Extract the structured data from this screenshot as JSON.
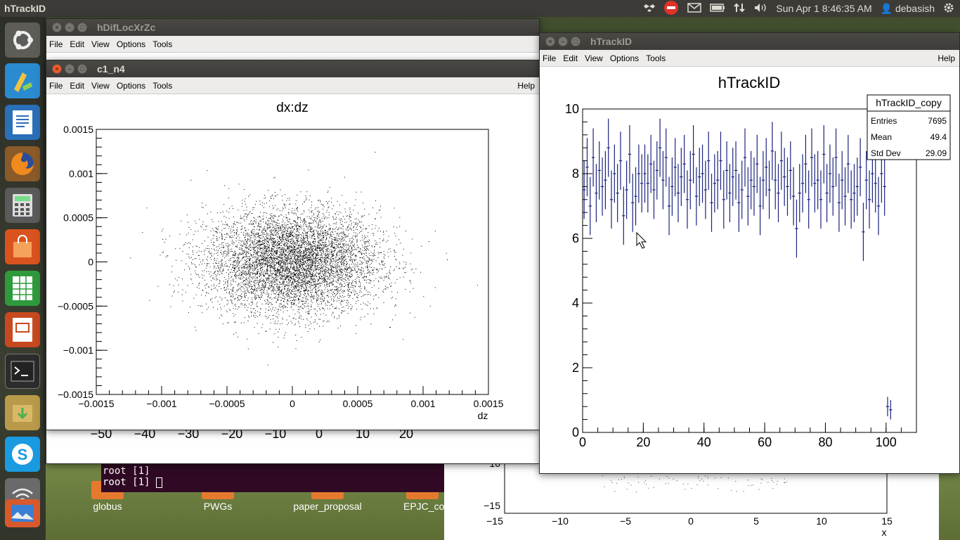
{
  "top_panel": {
    "app_title": "hTrackID",
    "clock": "Sun Apr  1  8:46:35 AM",
    "user": "debasish"
  },
  "windows": {
    "hdif": {
      "title": "hDifLocXrZc",
      "menu": [
        "File",
        "Edit",
        "View",
        "Options",
        "Tools"
      ],
      "x_ticks": [
        "−50",
        "−40",
        "−30",
        "−20",
        "−10",
        "0",
        "10",
        "20"
      ]
    },
    "back_plot": {
      "y_ticks": [
        "−10",
        "−15"
      ],
      "x_ticks": [
        "−15",
        "−10",
        "−5",
        "0",
        "5",
        "10",
        "15"
      ],
      "x_label": "x"
    },
    "c1_n4": {
      "title": "c1_n4",
      "menu": [
        "File",
        "Edit",
        "View",
        "Options",
        "Tools"
      ],
      "help": "Help"
    },
    "htrack": {
      "title": "hTrackID",
      "menu": [
        "File",
        "Edit",
        "View",
        "Options",
        "Tools"
      ],
      "help": "Help"
    }
  },
  "terminal": {
    "lines": [
      "root [1]",
      "root [1]"
    ]
  },
  "desktop_icons": [
    "globus",
    "PWGs",
    "paper_proposal",
    "EPJC_co"
  ],
  "stats_box": {
    "name": "hTrackID_copy",
    "entries_label": "Entries",
    "entries": "7695",
    "mean_label": "Mean",
    "mean": "49.4",
    "std_label": "Std Dev",
    "std": "29.09"
  },
  "chart_data": [
    {
      "type": "scatter",
      "title": "dx:dz",
      "xlabel": "dz",
      "ylabel": "",
      "xlim": [
        -0.0015,
        0.0015
      ],
      "ylim": [
        -0.0015,
        0.0015
      ],
      "x_ticks": [
        "−0.0015",
        "−0.001",
        "−0.0005",
        "0",
        "0.0005",
        "0.001",
        "0.0015"
      ],
      "y_ticks": [
        "0.0015",
        "0.001",
        "0.0005",
        "0",
        "−0.0005",
        "−0.001",
        "−0.0015"
      ],
      "distribution": {
        "center_x": 0.0,
        "center_y": 0.0,
        "sigma_x": 0.00033,
        "sigma_y": 0.00029,
        "n_points": 7000
      }
    },
    {
      "type": "bar",
      "title": "hTrackID",
      "xlabel": "",
      "ylabel": "",
      "xlim": [
        0,
        110
      ],
      "ylim": [
        0,
        10
      ],
      "x_ticks": [
        "0",
        "20",
        "40",
        "60",
        "80",
        "100"
      ],
      "y_ticks": [
        "0",
        "2",
        "4",
        "6",
        "8",
        "10"
      ],
      "bins_start": 0,
      "bin_width": 1,
      "values": [
        7.5,
        8.2,
        7.0,
        8.5,
        7.4,
        8.1,
        7.6,
        7.8,
        8.8,
        7.2,
        8.0,
        7.4,
        8.4,
        6.7,
        7.5,
        8.6,
        7.1,
        7.3,
        8.0,
        7.7,
        8.0,
        7.7,
        8.3,
        7.5,
        8.1,
        8.8,
        7.8,
        8.5,
        7.0,
        7.6,
        8.2,
        7.4,
        7.9,
        8.3,
        7.2,
        7.8,
        8.6,
        7.3,
        7.9,
        8.0,
        7.5,
        8.4,
        7.1,
        7.7,
        7.8,
        8.4,
        7.2,
        8.1,
        7.4,
        7.9,
        8.1,
        7.1,
        7.5,
        8.5,
        7.3,
        7.8,
        7.6,
        8.3,
        7.0,
        7.8,
        8.2,
        7.5,
        8.7,
        7.8,
        7.4,
        8.4,
        7.9,
        7.6,
        8.1,
        7.3,
        6.3,
        7.4,
        7.7,
        8.3,
        7.2,
        8.5,
        7.7,
        7.8,
        7.2,
        8.6,
        7.4,
        8.0,
        7.6,
        8.5,
        7.1,
        7.8,
        7.3,
        8.3,
        7.2,
        7.4,
        7.6,
        8.2,
        6.2,
        7.8,
        7.2,
        8.0,
        7.7,
        7.0,
        8.0,
        7.6,
        0.8,
        0.7
      ],
      "errors": [
        0.9,
        0.9,
        0.9,
        0.9,
        0.9,
        0.9,
        0.9,
        0.9,
        0.9,
        0.9,
        0.9,
        0.9,
        0.9,
        0.9,
        0.9,
        0.9,
        0.9,
        0.9,
        0.9,
        0.9,
        0.9,
        0.9,
        0.9,
        0.9,
        0.9,
        0.9,
        0.9,
        0.9,
        0.9,
        0.9,
        0.9,
        0.9,
        0.9,
        0.9,
        0.9,
        0.9,
        0.9,
        0.9,
        0.9,
        0.9,
        0.9,
        0.9,
        0.9,
        0.9,
        0.9,
        0.9,
        0.9,
        0.9,
        0.9,
        0.9,
        0.9,
        0.9,
        0.9,
        0.9,
        0.9,
        0.9,
        0.9,
        0.9,
        0.9,
        0.9,
        0.9,
        0.9,
        0.9,
        0.9,
        0.9,
        0.9,
        0.9,
        0.9,
        0.9,
        0.9,
        0.9,
        0.9,
        0.9,
        0.9,
        0.9,
        0.9,
        0.9,
        0.9,
        0.9,
        0.9,
        0.9,
        0.9,
        0.9,
        0.9,
        0.9,
        0.9,
        0.9,
        0.9,
        0.9,
        0.9,
        0.9,
        0.9,
        0.9,
        0.9,
        0.9,
        0.9,
        0.9,
        0.9,
        0.9,
        0.9,
        0.3,
        0.3
      ],
      "color": "#1a237e"
    }
  ]
}
